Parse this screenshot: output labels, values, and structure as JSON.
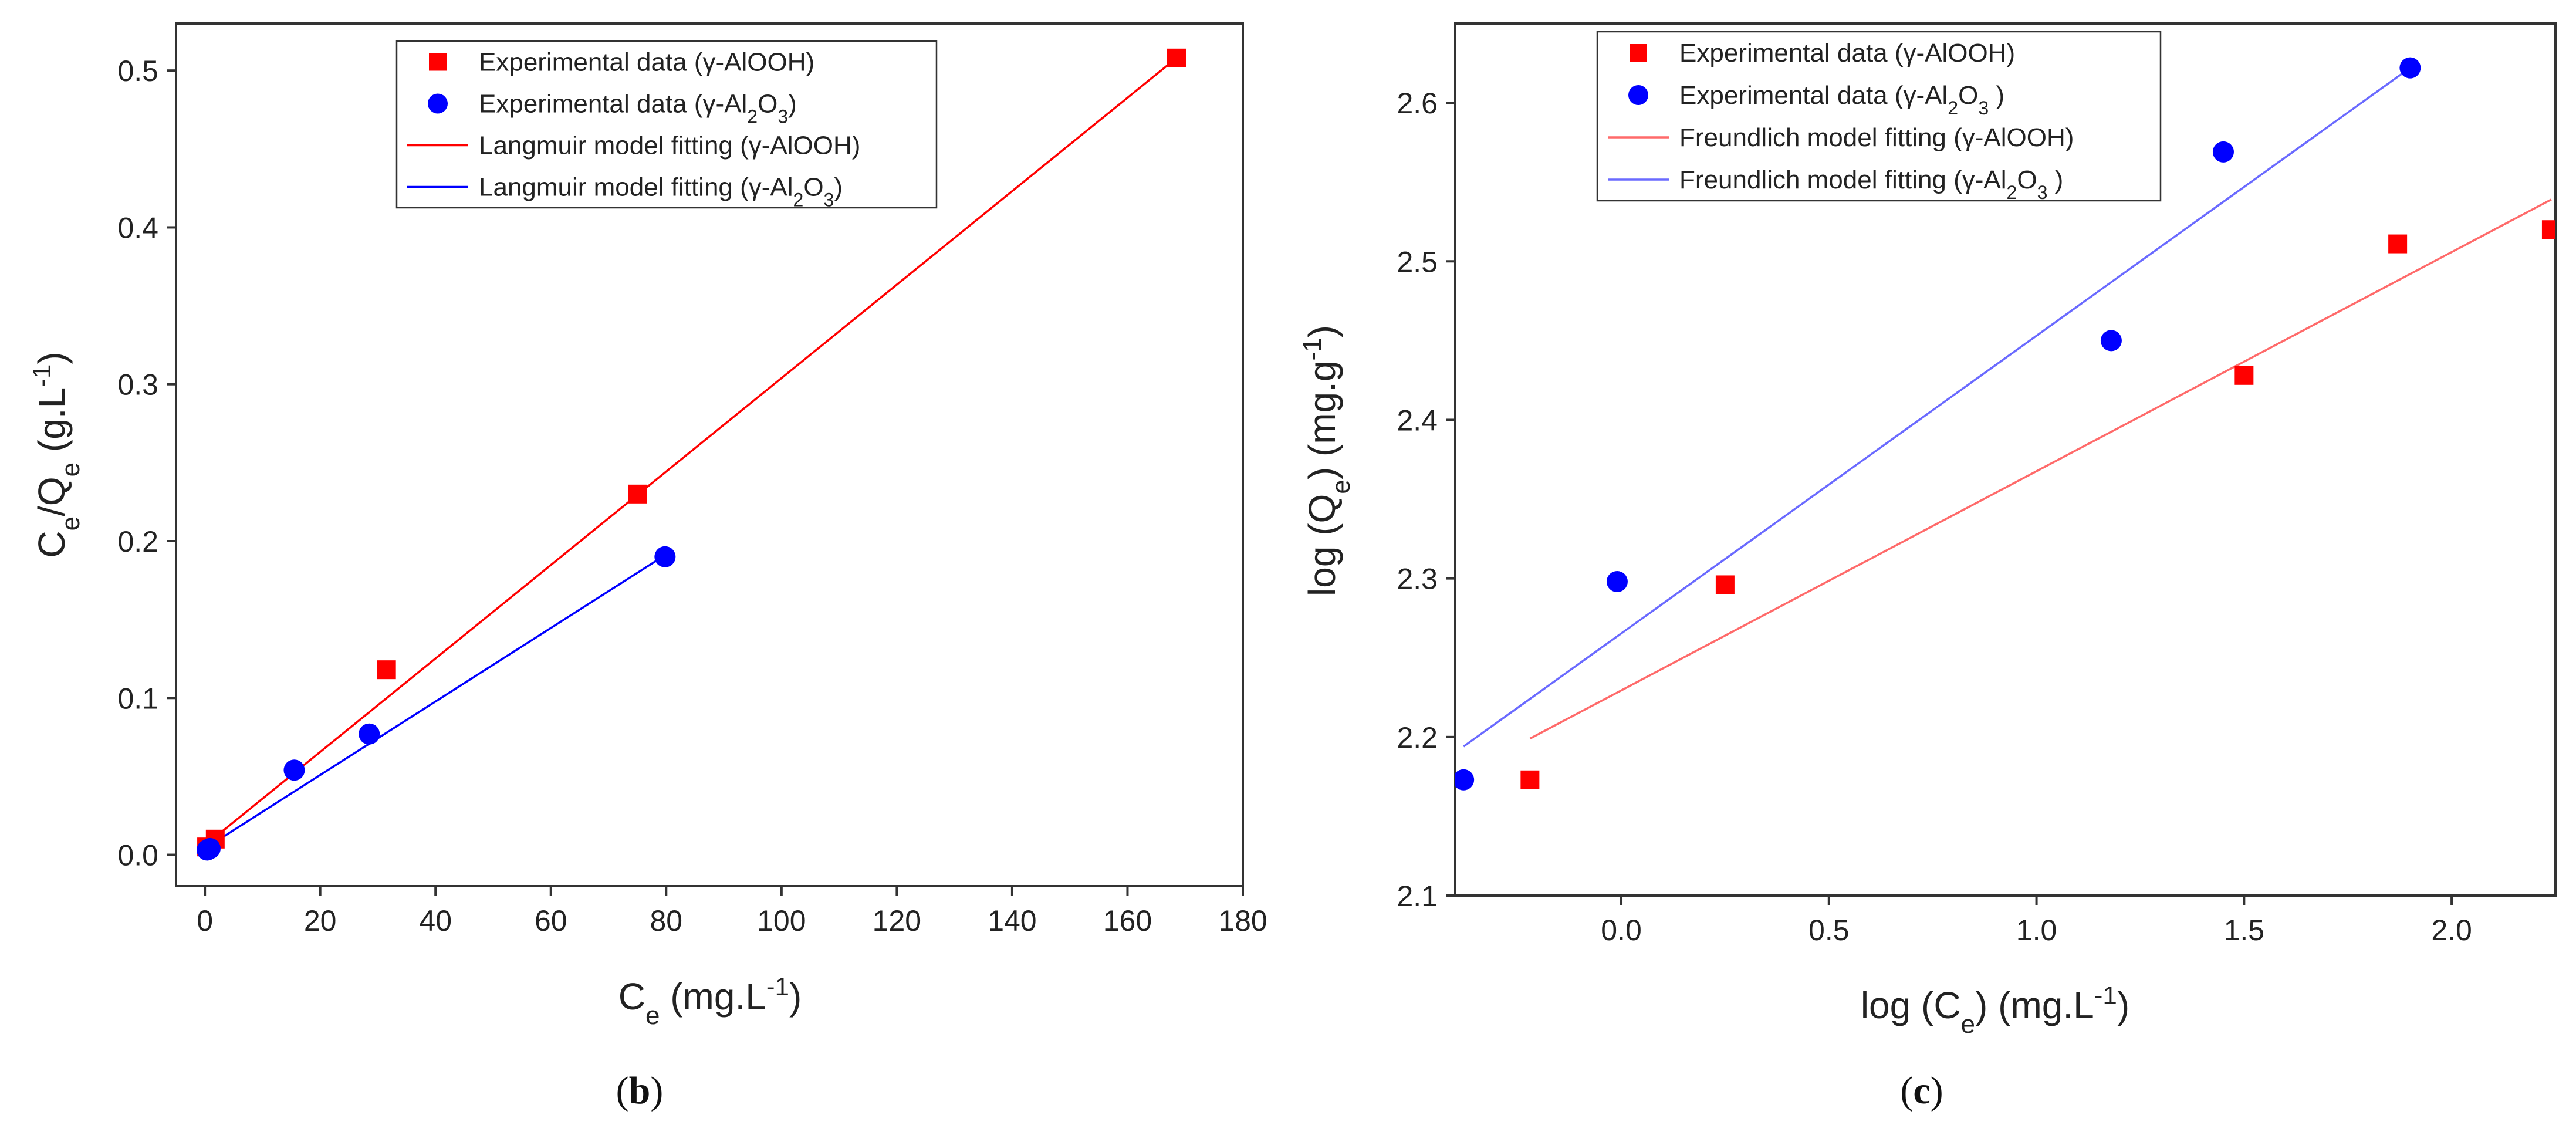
{
  "chart_data": [
    {
      "type": "scatter",
      "panel_label": "b",
      "title": "",
      "xlabel": {
        "base": "C",
        "sub": "e",
        "rest": " (mg.L",
        "sup": "-1",
        "end": ")"
      },
      "ylabel": {
        "a": "C",
        "a_sub": "e",
        "mid": "/Q",
        "b_sub": "e",
        "rest": " (g.L",
        "sup": "-1",
        "end": ")"
      },
      "xlim": [
        -5,
        180
      ],
      "ylim": [
        -0.02,
        0.53
      ],
      "xticks": [
        0,
        20,
        40,
        60,
        80,
        100,
        120,
        140,
        160,
        180
      ],
      "xtick_labels": [
        "0",
        "20",
        "40",
        "60",
        "80",
        "100",
        "120",
        "140",
        "160",
        "180"
      ],
      "yticks": [
        0.0,
        0.1,
        0.2,
        0.3,
        0.4,
        0.5
      ],
      "ytick_labels": [
        "0.0",
        "0.1",
        "0.2",
        "0.3",
        "0.4",
        "0.5"
      ],
      "series": [
        {
          "name": "Experimental data (γ-AlOOH)",
          "kind": "points",
          "marker": "square",
          "color": "#ff0000",
          "points": [
            [
              0.3,
              0.005
            ],
            [
              1.8,
              0.01
            ],
            [
              31.5,
              0.118
            ],
            [
              75,
              0.23
            ],
            [
              168.5,
              0.508
            ]
          ]
        },
        {
          "name": "Experimental data (γ-Al2O3)",
          "kind": "points",
          "marker": "circle",
          "color": "#0000ff",
          "points": [
            [
              0.4,
              0.003
            ],
            [
              0.9,
              0.004
            ],
            [
              15.5,
              0.054
            ],
            [
              28.5,
              0.077
            ],
            [
              79.8,
              0.19
            ]
          ]
        },
        {
          "name": "Langmuir model fitting (γ-AlOOH)",
          "kind": "line",
          "color": "#ff0000",
          "points": [
            [
              0,
              0.006
            ],
            [
              168.5,
              0.508
            ]
          ]
        },
        {
          "name": "Langmuir model fitting (γ-Al2O3)",
          "kind": "line",
          "color": "#0000ff",
          "points": [
            [
              0,
              0.004
            ],
            [
              79.8,
              0.191
            ]
          ]
        }
      ],
      "legend": {
        "position": "top",
        "entries": [
          {
            "text": "Experimental data (γ-AlOOH)"
          },
          {
            "pre": "Experimental data (γ-Al",
            "s1": "2",
            "mid": "O",
            "s2": "3",
            "post": ")"
          },
          {
            "text": "Langmuir model fitting (γ-AlOOH)"
          },
          {
            "pre": "Langmuir model fitting (γ-Al",
            "s1": "2",
            "mid": "O",
            "s2": "3",
            "post": ")"
          }
        ]
      }
    },
    {
      "type": "scatter",
      "panel_label": "c",
      "title": "",
      "xlabel": {
        "base": "log (C",
        "sub": "e",
        "rest": ") (mg.L",
        "sup": "-1",
        "end": ")"
      },
      "ylabel": {
        "base": "log (Q",
        "sub": "e",
        "rest": ") (mg.g",
        "sup": "-1",
        "end": ")"
      },
      "xlim": [
        -0.4,
        2.25
      ],
      "ylim": [
        2.1,
        2.65
      ],
      "xticks": [
        0.0,
        0.5,
        1.0,
        1.5,
        2.0
      ],
      "xtick_labels": [
        "0.0",
        "0.5",
        "1.0",
        "1.5",
        "2.0"
      ],
      "yticks": [
        2.1,
        2.2,
        2.3,
        2.4,
        2.5,
        2.6
      ],
      "ytick_labels": [
        "2.1",
        "2.2",
        "2.3",
        "2.4",
        "2.5",
        "2.6"
      ],
      "series": [
        {
          "name": "Experimental data (γ-AlOOH)",
          "kind": "points",
          "marker": "square",
          "color": "#ff0000",
          "points": [
            [
              -0.22,
              2.173
            ],
            [
              0.25,
              2.296
            ],
            [
              1.5,
              2.428
            ],
            [
              1.87,
              2.511
            ],
            [
              2.24,
              2.52
            ]
          ]
        },
        {
          "name": "Experimental data (γ-Al2O3)",
          "kind": "points",
          "marker": "circle",
          "color": "#0000ff",
          "points": [
            [
              -0.38,
              2.173
            ],
            [
              -0.01,
              2.298
            ],
            [
              1.18,
              2.45
            ],
            [
              1.45,
              2.569
            ],
            [
              1.9,
              2.622
            ]
          ]
        },
        {
          "name": "Freundlich model fitting (γ-AlOOH)",
          "kind": "line",
          "color": "#ff6a6a",
          "points": [
            [
              -0.22,
              2.199
            ],
            [
              2.24,
              2.539
            ]
          ]
        },
        {
          "name": "Freundlich model fitting (γ-Al2O3)",
          "kind": "line",
          "color": "#6a6aff",
          "points": [
            [
              -0.38,
              2.194
            ],
            [
              1.9,
              2.622
            ]
          ]
        }
      ],
      "legend": {
        "position": "top-left",
        "entries": [
          {
            "text": "Experimental data (γ-AlOOH)"
          },
          {
            "pre": "Experimental data (γ-Al",
            "s1": "2",
            "mid": "O",
            "s2": "3",
            "post": " )"
          },
          {
            "text": "Freundlich model fitting (γ-AlOOH)"
          },
          {
            "pre": "Freundlich model fitting (γ-Al",
            "s1": "2",
            "mid": "O",
            "s2": "3",
            "post": " )"
          }
        ]
      }
    }
  ]
}
